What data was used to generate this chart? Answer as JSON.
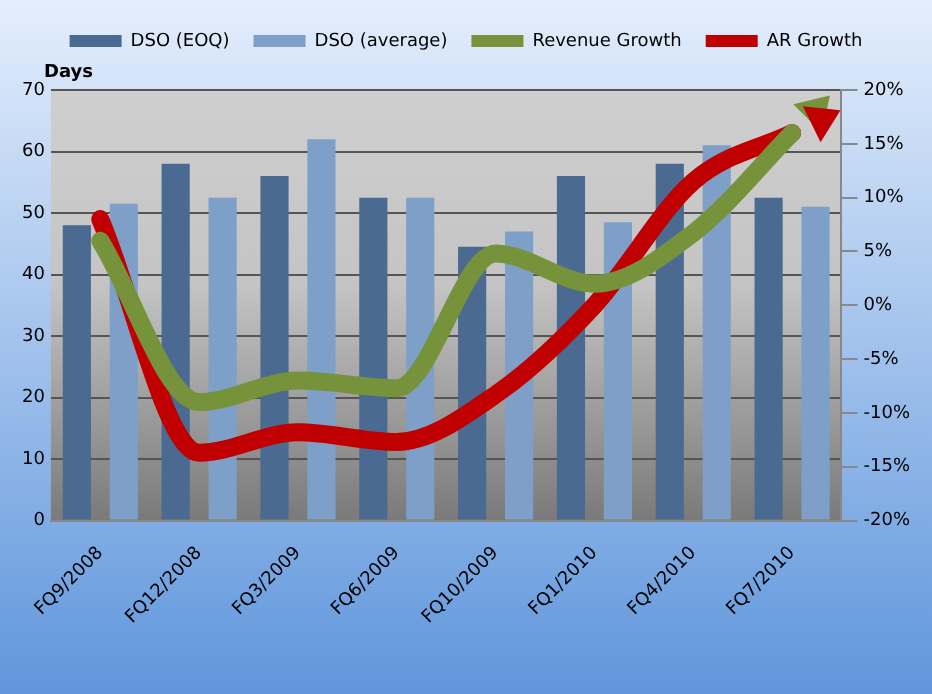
{
  "chart_data": {
    "type": "bar",
    "ylabel": "Days",
    "categories": [
      "FQ9/2008",
      "FQ12/2008",
      "FQ3/2009",
      "FQ6/2009",
      "FQ10/2009",
      "FQ1/2010",
      "FQ4/2010",
      "FQ7/2010"
    ],
    "series": [
      {
        "name": "DSO (EOQ)",
        "color": "#4a6a92",
        "values": [
          48,
          58,
          56,
          52.5,
          44.5,
          56,
          58,
          52.5
        ]
      },
      {
        "name": "DSO (average)",
        "color": "#7ea0c8",
        "values": [
          51.5,
          52.5,
          62,
          52.5,
          47,
          48.5,
          61,
          51
        ]
      },
      {
        "name": "Revenue Growth",
        "type": "line",
        "axis": "y2",
        "color": "#76933c",
        "values": [
          6,
          -9,
          -7,
          -7.7,
          4.8,
          2,
          6.7,
          16
        ]
      },
      {
        "name": "AR Growth",
        "type": "line",
        "axis": "y2",
        "color": "#c00000",
        "values": [
          8,
          -13.7,
          -11.8,
          -12.7,
          -8.3,
          0,
          11.5,
          16
        ]
      }
    ],
    "ylim": [
      0,
      70
    ],
    "yticks": [
      0,
      10,
      20,
      30,
      40,
      50,
      60,
      70
    ],
    "y2lim": [
      -20,
      20
    ],
    "y2ticks": [
      {
        "value": -20,
        "label": "-20%"
      },
      {
        "value": -15,
        "label": "-15%"
      },
      {
        "value": -10,
        "label": "-10%"
      },
      {
        "value": -5,
        "label": "-5%"
      },
      {
        "value": 0,
        "label": "0%"
      },
      {
        "value": 5,
        "label": "5%"
      },
      {
        "value": 10,
        "label": "10%"
      },
      {
        "value": 15,
        "label": "15%"
      },
      {
        "value": 20,
        "label": "20%"
      }
    ],
    "grid": "y",
    "legend": "top",
    "marker": "none",
    "line_style": "solid"
  }
}
